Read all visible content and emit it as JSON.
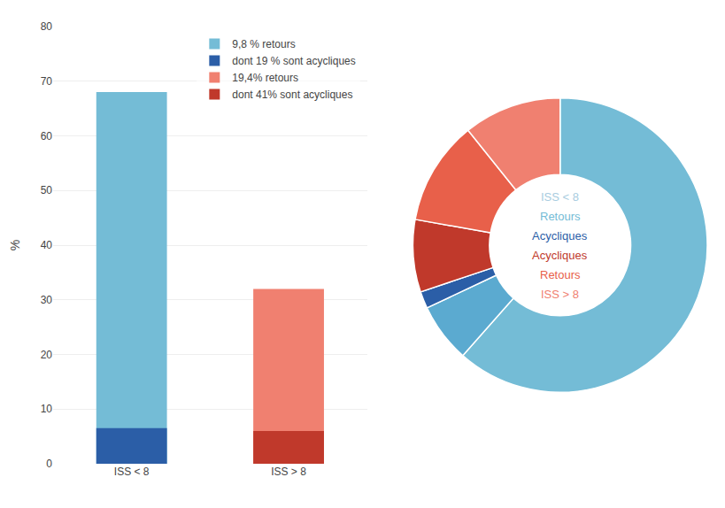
{
  "chart_data": [
    {
      "type": "bar",
      "categories": [
        "ISS < 8",
        "ISS > 8"
      ],
      "series": [
        {
          "name": "9,8 % retours",
          "color": "#74BCD6",
          "values": [
            68.0,
            null
          ]
        },
        {
          "name": "dont 19 % sont acycliques",
          "color": "#2B5EA7",
          "values": [
            6.5,
            null
          ]
        },
        {
          "name": "19,4% retours",
          "color": "#F08070",
          "values": [
            null,
            32.0
          ]
        },
        {
          "name": "dont 41% sont acycliques",
          "color": "#C0392B",
          "values": [
            null,
            6.0
          ]
        }
      ],
      "ylabel": "%",
      "ylim": [
        0,
        80
      ],
      "yticks": [
        0,
        10,
        20,
        30,
        40,
        50,
        60,
        70,
        80
      ],
      "stacked": false,
      "grid": true,
      "legend": "upper right"
    },
    {
      "type": "pie",
      "values": [
        61.5,
        6.5,
        1.86,
        7.95,
        11.45,
        10.75
      ],
      "colors": [
        "#74BCD6",
        "#5BAAD0",
        "#2B5EA7",
        "#C0392B",
        "#E8604A",
        "#F08070"
      ],
      "annotations": [
        {
          "text": "ISS < 8",
          "color": "#A8CCE0"
        },
        {
          "text": "Retours",
          "color": "#74BCD6"
        },
        {
          "text": "Acycliques",
          "color": "#2B5EA7"
        },
        {
          "text": "Acycliques",
          "color": "#C0392B"
        },
        {
          "text": "Retours",
          "color": "#E8604A"
        },
        {
          "text": "ISS > 8",
          "color": "#F08070"
        }
      ]
    }
  ]
}
